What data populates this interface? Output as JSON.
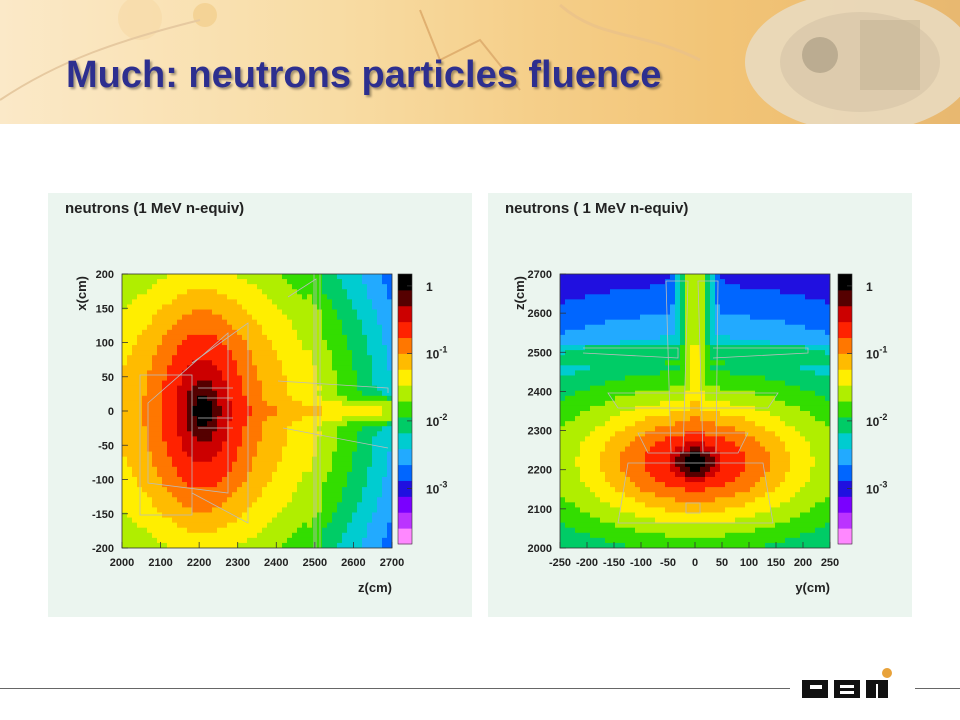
{
  "title": "Much: neutrons particles fluence",
  "logo_text": "GSI",
  "colors": {
    "title": "#2d2f8f",
    "panel_bg": "#ebf5ef",
    "logo_dot": "#e8a23a"
  },
  "chart_data": [
    {
      "type": "heatmap",
      "title": "neutrons (1 MeV n-equiv)",
      "xlabel": "z(cm)",
      "ylabel": "x(cm)",
      "xlim": [
        2000,
        2700
      ],
      "ylim": [
        -200,
        200
      ],
      "x_ticks": [
        "2000",
        "2100",
        "2200",
        "2300",
        "2400",
        "2500",
        "2600",
        "2700"
      ],
      "y_ticks": [
        "200",
        "150",
        "100",
        "50",
        "0",
        "-50",
        "-100",
        "-150",
        "-200"
      ],
      "colorbar_scale": "log",
      "colorbar_labels": [
        {
          "label": "1",
          "value": 1
        },
        {
          "label": "10-1",
          "value": 0.1
        },
        {
          "label": "10-2",
          "value": 0.01
        },
        {
          "label": "10-3",
          "value": 0.001
        }
      ],
      "colorbar_range": [
        0.00015,
        1.5
      ],
      "hotspot": {
        "x": 2210,
        "y": 0
      }
    },
    {
      "type": "heatmap",
      "title": "neutrons ( 1 MeV n-equiv)",
      "xlabel": "y(cm)",
      "ylabel": "z(cm)",
      "xlim": [
        -250,
        250
      ],
      "ylim": [
        2000,
        2700
      ],
      "x_ticks": [
        "-250",
        "-200",
        "-150",
        "-100",
        "-50",
        "0",
        "50",
        "100",
        "150",
        "200",
        "250"
      ],
      "y_ticks": [
        "2700",
        "2600",
        "2500",
        "2400",
        "2300",
        "2200",
        "2100",
        "2000"
      ],
      "colorbar_scale": "log",
      "colorbar_labels": [
        {
          "label": "1",
          "value": 1
        },
        {
          "label": "10-1",
          "value": 0.1
        },
        {
          "label": "10-2",
          "value": 0.01
        },
        {
          "label": "10-3",
          "value": 0.001
        }
      ],
      "colorbar_range": [
        0.00015,
        1.5
      ],
      "hotspot": {
        "x": 0,
        "y": 2220
      }
    }
  ]
}
